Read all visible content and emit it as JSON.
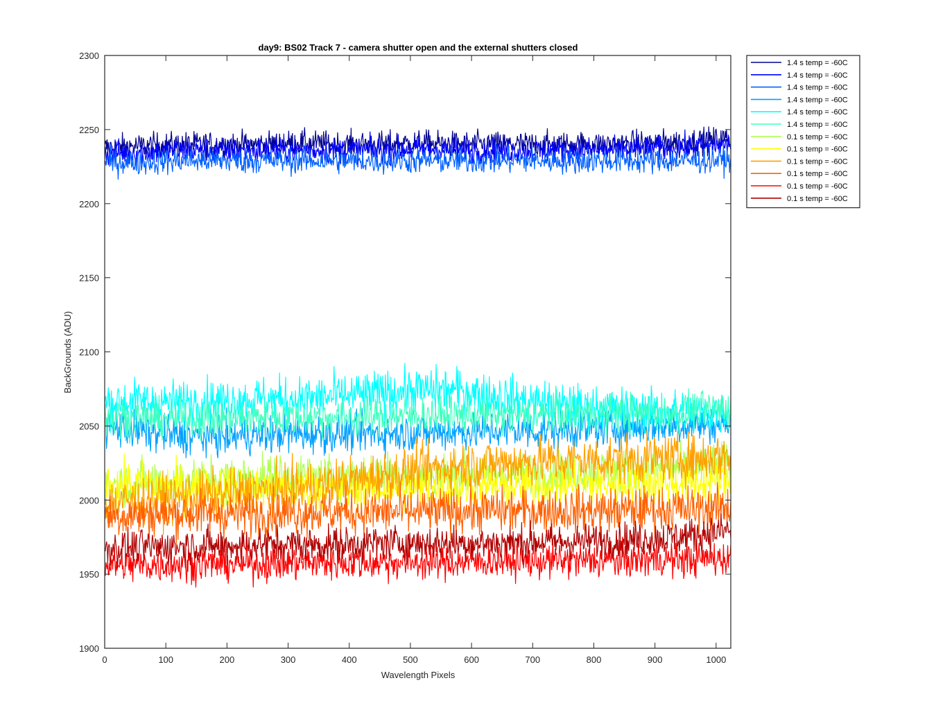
{
  "chart_data": {
    "type": "line",
    "title": "day9: BS02  Track 7 - camera shutter open and the external shutters closed",
    "xlabel": "Wavelength Pixels",
    "ylabel": "BackGrounds (ADU)",
    "xlim": [
      0,
      1024
    ],
    "ylim": [
      1900,
      2300
    ],
    "xticks": [
      0,
      100,
      200,
      300,
      400,
      500,
      600,
      700,
      800,
      900,
      1000
    ],
    "yticks": [
      1900,
      1950,
      2000,
      2050,
      2100,
      2150,
      2200,
      2250,
      2300
    ],
    "grid": false,
    "legend_position": "outside-top-right",
    "x": [
      0,
      64,
      128,
      192,
      256,
      320,
      384,
      448,
      512,
      576,
      640,
      704,
      768,
      832,
      896,
      960,
      1024
    ],
    "series": [
      {
        "name": "1.4 s temp = -60C",
        "color": "#00008f",
        "noise": 8,
        "values": [
          2238,
          2239,
          2240,
          2240,
          2240,
          2241,
          2240,
          2240,
          2241,
          2240,
          2240,
          2240,
          2240,
          2240,
          2241,
          2242,
          2244
        ]
      },
      {
        "name": "1.4 s temp = -60C",
        "color": "#0000ff",
        "noise": 8,
        "values": [
          2234,
          2235,
          2236,
          2236,
          2236,
          2236,
          2236,
          2236,
          2237,
          2236,
          2236,
          2236,
          2236,
          2236,
          2237,
          2238,
          2240
        ]
      },
      {
        "name": "1.4 s temp = -60C",
        "color": "#0060ff",
        "noise": 8,
        "values": [
          2228,
          2228,
          2229,
          2229,
          2229,
          2229,
          2229,
          2229,
          2229,
          2229,
          2229,
          2229,
          2229,
          2229,
          2229,
          2229,
          2230
        ]
      },
      {
        "name": "1.4 s temp = -60C",
        "color": "#00a0ff",
        "noise": 12,
        "values": [
          2050,
          2046,
          2043,
          2043,
          2044,
          2045,
          2045,
          2045,
          2046,
          2046,
          2047,
          2047,
          2048,
          2049,
          2050,
          2051,
          2052
        ]
      },
      {
        "name": "1.4 s temp = -60C",
        "color": "#00ffff",
        "noise": 14,
        "values": [
          2066,
          2066,
          2066,
          2067,
          2068,
          2068,
          2070,
          2072,
          2074,
          2074,
          2070,
          2066,
          2063,
          2061,
          2060,
          2059,
          2059
        ]
      },
      {
        "name": "1.4 s temp = -60C",
        "color": "#40ffbf",
        "noise": 12,
        "values": [
          2056,
          2055,
          2055,
          2055,
          2056,
          2056,
          2056,
          2056,
          2057,
          2057,
          2057,
          2057,
          2058,
          2058,
          2059,
          2060,
          2062
        ]
      },
      {
        "name": "0.1 s temp = -60C",
        "color": "#b0ff50",
        "noise": 14,
        "values": [
          2010,
          2012,
          2013,
          2014,
          2015,
          2016,
          2016,
          2017,
          2017,
          2017,
          2018,
          2018,
          2019,
          2020,
          2021,
          2022,
          2023
        ]
      },
      {
        "name": "0.1 s temp = -60C",
        "color": "#ffff00",
        "noise": 14,
        "values": [
          2010,
          2010,
          2009,
          2009,
          2008,
          2008,
          2008,
          2008,
          2008,
          2009,
          2009,
          2010,
          2010,
          2011,
          2011,
          2012,
          2013
        ]
      },
      {
        "name": "0.1 s temp = -60C",
        "color": "#ffa000",
        "noise": 15,
        "values": [
          1998,
          2000,
          2002,
          2004,
          2006,
          2008,
          2012,
          2016,
          2020,
          2023,
          2025,
          2026,
          2027,
          2027,
          2028,
          2028,
          2030
        ]
      },
      {
        "name": "0.1 s temp = -60C",
        "color": "#ff6000",
        "noise": 14,
        "values": [
          1990,
          1990,
          1991,
          1991,
          1991,
          1992,
          1992,
          1992,
          1992,
          1993,
          1993,
          1993,
          1993,
          1993,
          1994,
          1994,
          1995
        ]
      },
      {
        "name": "0.1 s temp = -60C",
        "color": "#ff0000",
        "noise": 11,
        "values": [
          1956,
          1956,
          1957,
          1957,
          1957,
          1958,
          1958,
          1958,
          1958,
          1958,
          1959,
          1959,
          1959,
          1959,
          1960,
          1960,
          1961
        ]
      },
      {
        "name": "0.1 s temp = -60C",
        "color": "#b00000",
        "noise": 11,
        "values": [
          1968,
          1968,
          1969,
          1969,
          1970,
          1970,
          1970,
          1971,
          1971,
          1971,
          1971,
          1972,
          1972,
          1973,
          1974,
          1976,
          1980
        ]
      }
    ]
  }
}
